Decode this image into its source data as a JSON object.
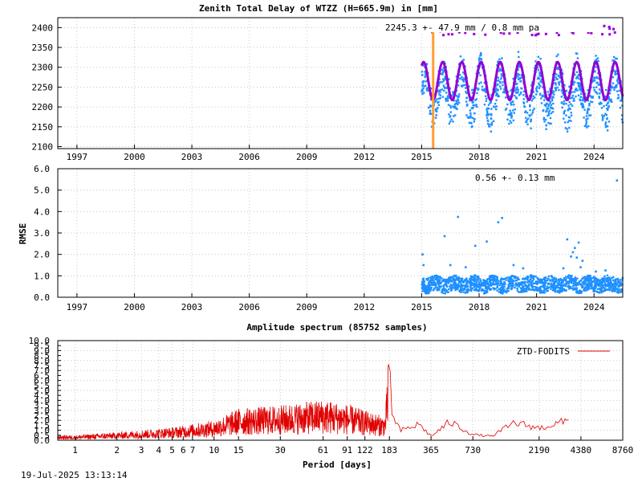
{
  "footer": {
    "timestamp": "19-Jul-2025 13:13:14"
  },
  "colors": {
    "series": "#1e90ff",
    "model": "#9400d3",
    "marker": "#ff9e30",
    "spectrum": "#e00000"
  },
  "chart_data": [
    {
      "type": "scatter",
      "title": "Zenith Total Delay of WTZZ (H=665.9m) in [mm]",
      "ylabel": "",
      "xlabel": "",
      "xlim": [
        1996,
        2025.5
      ],
      "ylim": [
        2095,
        2425
      ],
      "x_ticks": [
        1997,
        2000,
        2003,
        2006,
        2009,
        2012,
        2015,
        2018,
        2021,
        2024
      ],
      "y_ticks": [
        2100,
        2150,
        2200,
        2250,
        2300,
        2350,
        2400
      ],
      "annotation": "2245.3 +-  47.9 mm /  0.8 mm pa",
      "marker_line_x": 2015.6,
      "series": [
        {
          "name": "",
          "mean": 2245.3,
          "amplitude": 47.9,
          "spread": 60,
          "x_range": [
            2015.0,
            2025.5
          ]
        }
      ],
      "model_curve": {
        "start": 2015.0,
        "end": 2025.5,
        "mean": 2245.3,
        "amplitude": 47.9,
        "period_years": 1.0
      }
    },
    {
      "type": "scatter",
      "title": "",
      "ylabel": "RMSE",
      "xlabel": "",
      "xlim": [
        1996,
        2025.5
      ],
      "ylim": [
        0.0,
        6.0
      ],
      "x_ticks": [
        1997,
        2000,
        2003,
        2006,
        2009,
        2012,
        2015,
        2018,
        2021,
        2024
      ],
      "y_ticks": [
        0.0,
        1.0,
        2.0,
        3.0,
        4.0,
        5.0,
        6.0
      ],
      "y_tick_labels": [
        "0.0",
        "1.0",
        "2.0",
        "3.0",
        "4.0",
        "5.0",
        "6.0"
      ],
      "annotation": "0.56 +-  0.13 mm",
      "series": [
        {
          "name": "",
          "baseline": 0.6,
          "x_range": [
            2015.0,
            2025.5
          ]
        }
      ],
      "outliers": [
        [
          2015.05,
          2.0
        ],
        [
          2015.1,
          1.5
        ],
        [
          2016.2,
          2.85
        ],
        [
          2016.9,
          3.75
        ],
        [
          2016.5,
          1.5
        ],
        [
          2017.8,
          2.4
        ],
        [
          2017.3,
          1.4
        ],
        [
          2018.4,
          2.6
        ],
        [
          2019.0,
          3.5
        ],
        [
          2019.2,
          3.7
        ],
        [
          2019.8,
          1.5
        ],
        [
          2020.3,
          1.35
        ],
        [
          2022.6,
          2.7
        ],
        [
          2023.0,
          2.3
        ],
        [
          2023.2,
          2.55
        ],
        [
          2022.9,
          2.1
        ],
        [
          2023.1,
          1.85
        ],
        [
          2023.4,
          1.7
        ],
        [
          2022.8,
          1.9
        ],
        [
          2024.6,
          1.25
        ],
        [
          2025.2,
          5.45
        ],
        [
          2023.3,
          1.4
        ],
        [
          2022.4,
          1.35
        ],
        [
          2024.1,
          1.2
        ]
      ]
    },
    {
      "type": "line",
      "title": "Amplitude spectrum (85752 samples)",
      "xlabel": "Period [days]",
      "ylabel": "",
      "x_scale": "log",
      "xlim": [
        0.75,
        8760
      ],
      "ylim": [
        0.0,
        10.0
      ],
      "x_ticks": [
        1,
        2,
        3,
        4,
        5,
        6,
        7,
        10,
        15,
        30,
        61,
        91,
        122,
        183,
        365,
        730,
        2190,
        4380,
        8760
      ],
      "x_tick_labels": [
        "1",
        "2",
        "3",
        "4",
        "5",
        "6",
        "7",
        "10",
        "15",
        "30",
        "61",
        "91",
        "122",
        "183",
        "365",
        "730",
        "2190",
        "4380",
        "8760"
      ],
      "y_ticks": [
        0,
        0.5,
        1.0,
        1.5,
        2.0,
        2.5,
        3.0,
        3.5,
        4.0,
        4.5,
        5.0,
        5.5,
        6.0,
        6.5,
        7.0,
        7.5,
        8.0,
        8.5,
        9.0,
        9.5,
        10.0
      ],
      "y_tick_labels": [
        "0.0",
        "0.5",
        "1.0",
        "1.5",
        "2.0",
        "2.5",
        "3.0",
        "3.5",
        "4.0",
        "4.5",
        "5.0",
        "5.5",
        "6.0",
        "6.5",
        "7.0",
        "7.5",
        "8.0",
        "8.5",
        "9.0",
        "9.5",
        "10.0"
      ],
      "legend": "ZTD-FODITS",
      "legend_position": "top-right",
      "series": [
        {
          "name": "ZTD-FODITS",
          "peaks": [
            [
              1,
              0.5
            ],
            [
              2,
              0.8
            ],
            [
              5,
              1.3
            ],
            [
              10,
              2.0
            ],
            [
              15,
              3.2
            ],
            [
              30,
              3.5
            ],
            [
              61,
              4.1
            ],
            [
              91,
              3.6
            ],
            [
              122,
              3.0
            ],
            [
              170,
              2.4
            ],
            [
              183,
              9.1
            ],
            [
              190,
              3.0
            ],
            [
              220,
              1.2
            ],
            [
              300,
              2.0
            ],
            [
              365,
              0.5
            ],
            [
              500,
              2.3
            ],
            [
              730,
              0.7
            ],
            [
              1000,
              0.5
            ],
            [
              1460,
              2.2
            ],
            [
              2190,
              1.5
            ],
            [
              3650,
              2.5
            ]
          ]
        }
      ]
    }
  ]
}
